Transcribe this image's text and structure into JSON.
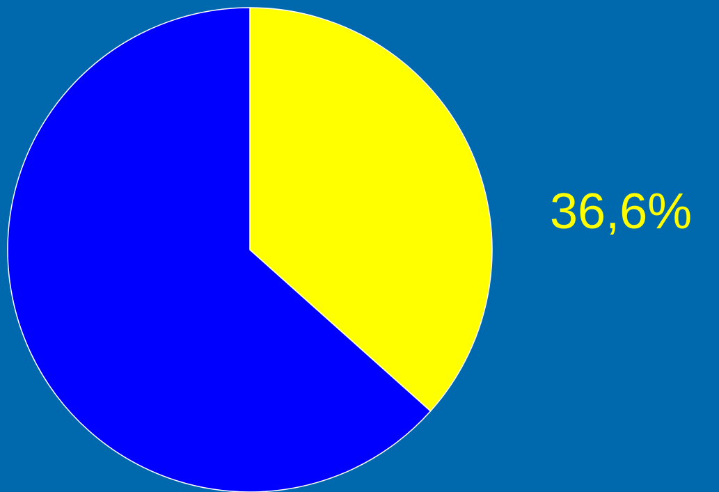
{
  "chart_data": {
    "type": "pie",
    "slices": [
      {
        "value": 36.6,
        "color": "#FFFF00",
        "label": "36,6%"
      },
      {
        "value": 63.4,
        "color": "#0000FF"
      }
    ],
    "start_angle_deg": 0,
    "direction": "clockwise",
    "slice_stroke_color": "#FFFFFF",
    "label_color": "#FFFF00"
  },
  "background_color": "#0069AE"
}
